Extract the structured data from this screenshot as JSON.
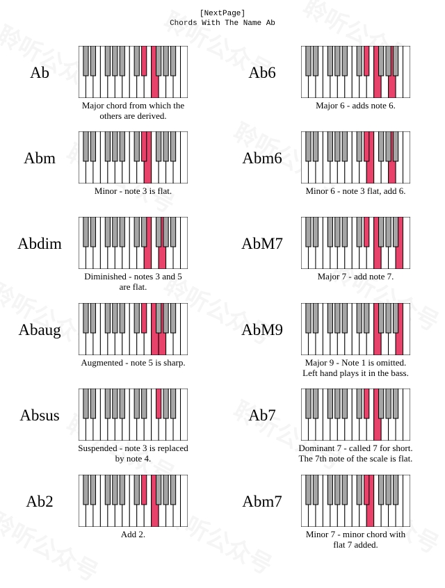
{
  "header": {
    "next_page": "[NextPage]",
    "title": "Chords With The Name Ab"
  },
  "watermark": {
    "text": "聆听公众号"
  },
  "colors": {
    "highlight": "#e8426a",
    "black_key": "#a6a6a6",
    "white_key": "#ffffff",
    "outline": "#000000"
  },
  "chords": [
    {
      "name": "Ab",
      "description_lines": [
        "Major chord from which the",
        "others are derived."
      ],
      "highlighted_keys": [
        "b8",
        "w10"
      ]
    },
    {
      "name": "Ab6",
      "description_lines": [
        "Major 6 - adds note 6."
      ],
      "highlighted_keys": [
        "b8",
        "w10",
        "w12"
      ]
    },
    {
      "name": "Abm",
      "description_lines": [
        "Minor - note 3 is flat."
      ],
      "highlighted_keys": [
        "b8",
        "w9"
      ]
    },
    {
      "name": "Abm6",
      "description_lines": [
        "Minor 6 - note 3 flat, add 6."
      ],
      "highlighted_keys": [
        "b8",
        "w9",
        "w12"
      ]
    },
    {
      "name": "Abdim",
      "description_lines": [
        "Diminished - notes 3 and 5",
        "are flat."
      ],
      "highlighted_keys": [
        "w9",
        "w11"
      ]
    },
    {
      "name": "AbM7",
      "description_lines": [
        "Major 7 - add note 7."
      ],
      "highlighted_keys": [
        "b8",
        "w10",
        "w13"
      ]
    },
    {
      "name": "Abaug",
      "description_lines": [
        "Augmented - note 5 is sharp."
      ],
      "highlighted_keys": [
        "b8",
        "w10",
        "w11"
      ]
    },
    {
      "name": "AbM9",
      "description_lines": [
        "Major 9 - Note 1 is omitted.",
        "Left hand plays it in the bass."
      ],
      "highlighted_keys": [
        "w10",
        "w13"
      ]
    },
    {
      "name": "Absus",
      "description_lines": [
        "Suspended - note 3 is replaced",
        "by note 4."
      ],
      "highlighted_keys": [
        "b10"
      ]
    },
    {
      "name": "Ab7",
      "description_lines": [
        "Dominant 7 - called 7 for short.",
        "The 7th note of the scale is flat."
      ],
      "highlighted_keys": [
        "b8",
        "w10"
      ]
    },
    {
      "name": "Ab2",
      "description_lines": [
        "Add 2."
      ],
      "highlighted_keys": [
        "b8",
        "w10"
      ]
    },
    {
      "name": "Abm7",
      "description_lines": [
        "Minor 7 - minor chord with",
        "flat 7 added."
      ],
      "highlighted_keys": [
        "b8",
        "w9"
      ]
    }
  ]
}
